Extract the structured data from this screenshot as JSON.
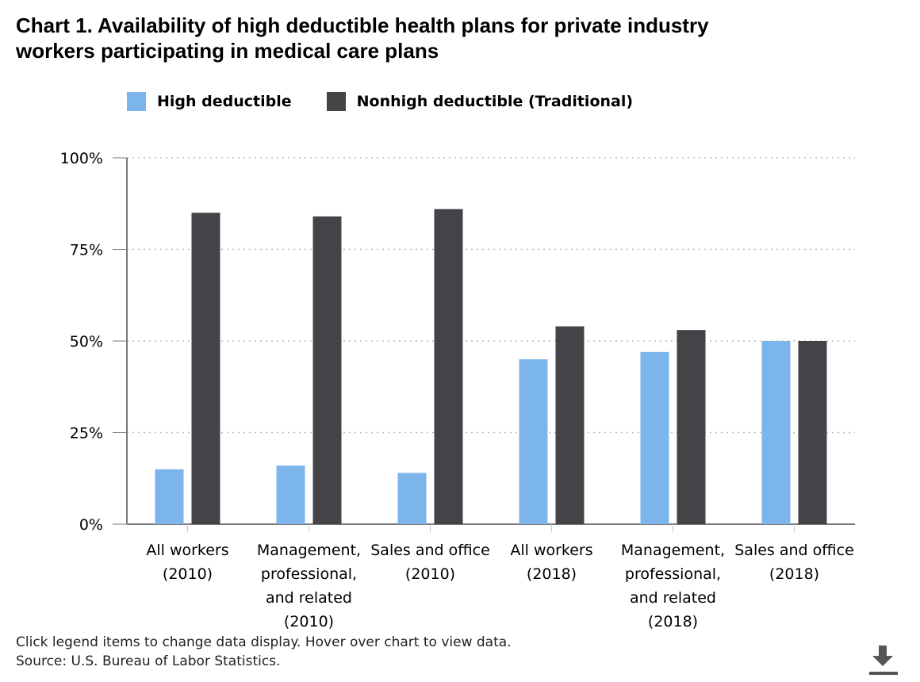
{
  "title": {
    "line1": "Chart 1. Availability of high deductible health plans for private industry",
    "line2": "workers participating in medical care plans"
  },
  "colors": {
    "high_deductible": "#7cb5ec",
    "nonhigh_deductible": "#434348",
    "gridline": "#b8b8b8",
    "axis": "#7a7a7a"
  },
  "footer": {
    "instructions": "Click legend items to change data display. Hover over chart to view data.",
    "source": "Source: U.S. Bureau of Labor Statistics."
  },
  "download_icon": "download-icon",
  "chart_data": {
    "type": "bar",
    "title": "Chart 1. Availability of high deductible health plans for private industry workers participating in medical care plans",
    "xlabel": "",
    "ylabel": "",
    "ylim": [
      0,
      100
    ],
    "y_ticks": [
      0,
      25,
      50,
      75,
      100
    ],
    "y_tick_labels": [
      "0%",
      "25%",
      "50%",
      "75%",
      "100%"
    ],
    "grid": true,
    "legend_position": "top-left",
    "categories": [
      [
        "All workers",
        "(2010)"
      ],
      [
        "Management,",
        "professional,",
        "and related",
        "(2010)"
      ],
      [
        "Sales and office",
        "(2010)"
      ],
      [
        "All workers",
        "(2018)"
      ],
      [
        "Management,",
        "professional,",
        "and related",
        "(2018)"
      ],
      [
        "Sales and office",
        "(2018)"
      ]
    ],
    "series": [
      {
        "name": "High deductible",
        "color": "#7cb5ec",
        "values": [
          15,
          16,
          14,
          45,
          47,
          50
        ]
      },
      {
        "name": "Nonhigh deductible (Traditional)",
        "color": "#434348",
        "values": [
          85,
          84,
          86,
          54,
          53,
          50
        ]
      }
    ]
  }
}
